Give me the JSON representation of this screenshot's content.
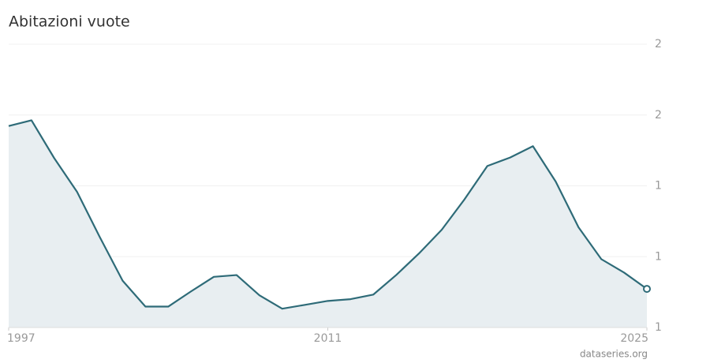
{
  "chart_data": {
    "type": "area",
    "title": "Abitazioni vuote",
    "source": "dataseries.org",
    "x": [
      1997,
      1998,
      1999,
      2000,
      2001,
      2002,
      2003,
      2004,
      2005,
      2006,
      2007,
      2008,
      2009,
      2010,
      2011,
      2012,
      2013,
      2014,
      2015,
      2016,
      2017,
      2018,
      2019,
      2020,
      2021,
      2022,
      2023,
      2024,
      2025
    ],
    "values": [
      1.569,
      1.585,
      1.478,
      1.383,
      1.255,
      1.132,
      1.059,
      1.059,
      1.102,
      1.143,
      1.148,
      1.091,
      1.053,
      1.064,
      1.075,
      1.08,
      1.093,
      1.148,
      1.209,
      1.276,
      1.362,
      1.456,
      1.48,
      1.512,
      1.412,
      1.283,
      1.193,
      1.155,
      1.109
    ],
    "color": "#2e6b78",
    "fill": "#e8eef1",
    "xlim": [
      1997,
      2025
    ],
    "xticks": [
      1997,
      2011,
      2025
    ],
    "ylim": [
      1.0,
      1.8
    ],
    "yticks": [
      {
        "value": 1.0,
        "label": "1"
      },
      {
        "value": 1.2,
        "label": "1"
      },
      {
        "value": 1.4,
        "label": "1"
      },
      {
        "value": 1.6,
        "label": "2"
      },
      {
        "value": 1.8,
        "label": "2"
      }
    ],
    "grid": true
  }
}
